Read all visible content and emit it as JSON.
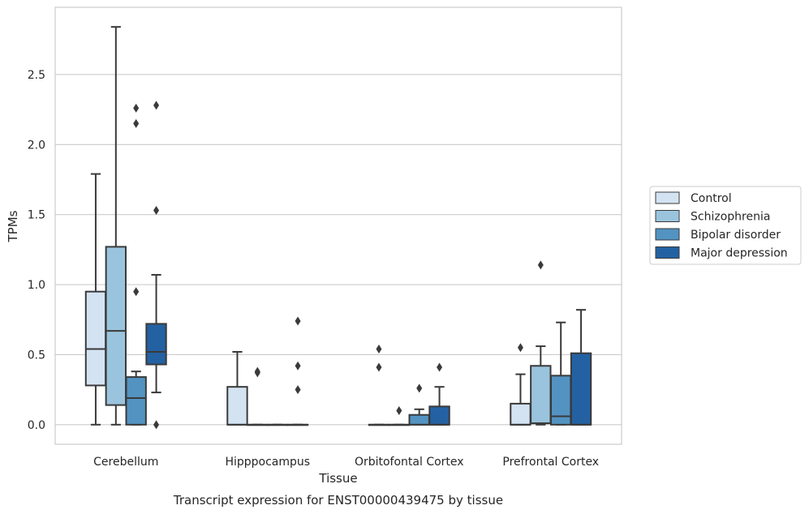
{
  "chart_data": {
    "type": "box",
    "caption": "Transcript expression for ENST00000439475 by tissue",
    "xlabel": "Tissue",
    "ylabel": "TPMs",
    "ylim": [
      -0.14,
      2.98
    ],
    "yticks": [
      0.0,
      0.5,
      1.0,
      1.5,
      2.0,
      2.5
    ],
    "ytick_labels": [
      "0.0",
      "0.5",
      "1.0",
      "1.5",
      "2.0",
      "2.5"
    ],
    "grid": "horizontal",
    "legend_position": "right",
    "categories": [
      "Cerebellum",
      "Hipppocampus",
      "Orbitofontal Cortex",
      "Prefrontal Cortex"
    ],
    "series": [
      {
        "name": "Control",
        "color": "#d3e3f2",
        "boxes": [
          {
            "whisker_low": 0.0,
            "q1": 0.28,
            "median": 0.54,
            "q3": 0.95,
            "whisker_high": 1.79,
            "outliers": []
          },
          {
            "whisker_low": 0.0,
            "q1": 0.0,
            "median": 0.0,
            "q3": 0.27,
            "whisker_high": 0.52,
            "outliers": []
          },
          {
            "whisker_low": 0.0,
            "q1": 0.0,
            "median": 0.0,
            "q3": 0.0,
            "whisker_high": 0.0,
            "outliers": [
              0.54,
              0.41
            ]
          },
          {
            "whisker_low": 0.0,
            "q1": 0.0,
            "median": 0.0,
            "q3": 0.15,
            "whisker_high": 0.36,
            "outliers": [
              0.55
            ]
          }
        ]
      },
      {
        "name": "Schizophrenia",
        "color": "#9ac4de",
        "boxes": [
          {
            "whisker_low": 0.0,
            "q1": 0.14,
            "median": 0.67,
            "q3": 1.27,
            "whisker_high": 2.84,
            "outliers": []
          },
          {
            "whisker_low": 0.0,
            "q1": 0.0,
            "median": 0.0,
            "q3": 0.0,
            "whisker_high": 0.0,
            "outliers": [
              0.38,
              0.37
            ]
          },
          {
            "whisker_low": 0.0,
            "q1": 0.0,
            "median": 0.0,
            "q3": 0.0,
            "whisker_high": 0.0,
            "outliers": [
              0.1
            ]
          },
          {
            "whisker_low": 0.0,
            "q1": 0.01,
            "median": 0.01,
            "q3": 0.42,
            "whisker_high": 0.56,
            "outliers": [
              1.14
            ]
          }
        ]
      },
      {
        "name": "Bipolar disorder",
        "color": "#5293c2",
        "boxes": [
          {
            "whisker_low": 0.0,
            "q1": 0.0,
            "median": 0.19,
            "q3": 0.34,
            "whisker_high": 0.38,
            "outliers": [
              2.26,
              2.15,
              0.95
            ]
          },
          {
            "whisker_low": 0.0,
            "q1": 0.0,
            "median": 0.0,
            "q3": 0.0,
            "whisker_high": 0.0,
            "outliers": []
          },
          {
            "whisker_low": 0.0,
            "q1": 0.0,
            "median": 0.0,
            "q3": 0.07,
            "whisker_high": 0.11,
            "outliers": [
              0.26
            ]
          },
          {
            "whisker_low": 0.0,
            "q1": 0.0,
            "median": 0.06,
            "q3": 0.35,
            "whisker_high": 0.73,
            "outliers": []
          }
        ]
      },
      {
        "name": "Major depression",
        "color": "#2361a3",
        "boxes": [
          {
            "whisker_low": 0.23,
            "q1": 0.43,
            "median": 0.52,
            "q3": 0.72,
            "whisker_high": 1.07,
            "outliers": [
              2.28,
              1.53,
              0.0
            ]
          },
          {
            "whisker_low": 0.0,
            "q1": 0.0,
            "median": 0.0,
            "q3": 0.0,
            "whisker_high": 0.0,
            "outliers": [
              0.74,
              0.42,
              0.25
            ]
          },
          {
            "whisker_low": 0.0,
            "q1": 0.0,
            "median": 0.0,
            "q3": 0.13,
            "whisker_high": 0.27,
            "outliers": [
              0.41
            ]
          },
          {
            "whisker_low": 0.0,
            "q1": 0.0,
            "median": 0.0,
            "q3": 0.51,
            "whisker_high": 0.82,
            "outliers": []
          }
        ]
      }
    ]
  }
}
